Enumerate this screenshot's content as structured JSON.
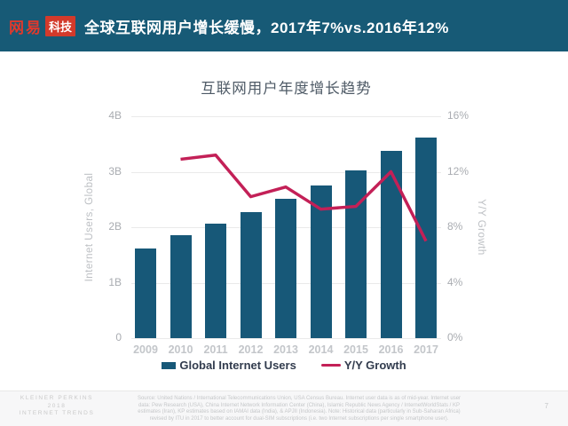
{
  "header": {
    "logo_wangyi": "网易",
    "logo_keji": "科技",
    "title": "全球互联网用户增长缓慢，2017年7%vs.2016年12%"
  },
  "chart": {
    "title": "互联网用户年度增长趋势",
    "left_axis_label": "Internet Users, Global",
    "right_axis_label": "Y/Y Growth",
    "left_ticks": [
      "4B",
      "3B",
      "2B",
      "1B",
      "0"
    ],
    "right_ticks": [
      "16%",
      "12%",
      "8%",
      "4%",
      "0%"
    ]
  },
  "chart_data": {
    "type": "bar",
    "title": "互联网用户年度增长趋势",
    "categories": [
      "2009",
      "2010",
      "2011",
      "2012",
      "2013",
      "2014",
      "2015",
      "2016",
      "2017"
    ],
    "series": [
      {
        "name": "Global Internet Users",
        "type": "bar",
        "axis": "left",
        "unit": "B",
        "values": [
          1.62,
          1.85,
          2.07,
          2.28,
          2.52,
          2.75,
          3.02,
          3.37,
          3.62
        ]
      },
      {
        "name": "Y/Y Growth",
        "type": "line",
        "axis": "right",
        "unit": "%",
        "values": [
          null,
          12.9,
          13.2,
          10.2,
          10.9,
          9.3,
          9.5,
          12.0,
          7.0
        ]
      }
    ],
    "ylabel_left": "Internet Users, Global",
    "ylabel_right": "Y/Y Growth",
    "ylim_left": [
      0,
      4
    ],
    "ylim_right": [
      0,
      16
    ],
    "grid": true,
    "legend_position": "bottom",
    "colors": {
      "bar": "#175878",
      "line": "#C32057"
    }
  },
  "footer": {
    "brand_lines": [
      "KLEINER PERKINS",
      "2018",
      "INTERNET TRENDS"
    ],
    "source_lines": [
      "Source: United Nations / International Telecommunications Union, USA Census Bureau. Internet user data is as of mid-year. Internet user",
      "data: Pew Research (USA), China Internet Network Information Center (China), Islamic Republic News Agency / InternetWorldStats / KP",
      "estimates (Iran), KP estimates based on IAMAI data (India), & APJII (Indonesia). Note: Historical data (particularly in Sub-Saharan Africa)",
      "revised by ITU in 2017 to better account for dual-SIM subscriptions (i.e. two Internet subscriptions per single smartphone user)."
    ],
    "page_number": "7"
  }
}
